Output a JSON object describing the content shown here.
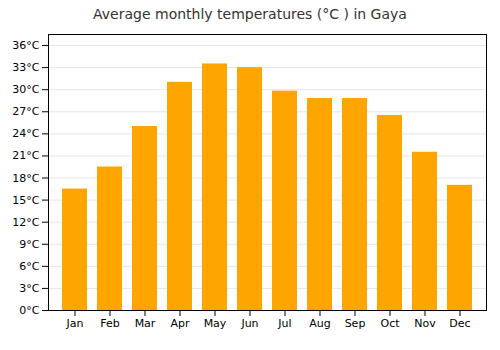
{
  "chart_data": {
    "type": "bar",
    "title": "Average monthly temperatures (°C ) in Gaya",
    "categories": [
      "Jan",
      "Feb",
      "Mar",
      "Apr",
      "May",
      "Jun",
      "Jul",
      "Aug",
      "Sep",
      "Oct",
      "Nov",
      "Dec"
    ],
    "values": [
      16.5,
      19.5,
      25.0,
      31.0,
      33.5,
      33.0,
      29.8,
      28.8,
      28.8,
      26.5,
      21.5,
      17.0
    ],
    "color": "#FFA500",
    "ylim": [
      0,
      37.5
    ],
    "yticks": [
      {
        "value": 0,
        "label": "0°C"
      },
      {
        "value": 3,
        "label": "3°C"
      },
      {
        "value": 6,
        "label": "6°C"
      },
      {
        "value": 9,
        "label": "9°C"
      },
      {
        "value": 12,
        "label": "12°C"
      },
      {
        "value": 15,
        "label": "15°C"
      },
      {
        "value": 18,
        "label": "18°C"
      },
      {
        "value": 21,
        "label": "21°C"
      },
      {
        "value": 24,
        "label": "24°C"
      },
      {
        "value": 27,
        "label": "27°C"
      },
      {
        "value": 30,
        "label": "30°C"
      },
      {
        "value": 33,
        "label": "33°C"
      },
      {
        "value": 36,
        "label": "36°C"
      }
    ],
    "grid": true
  }
}
